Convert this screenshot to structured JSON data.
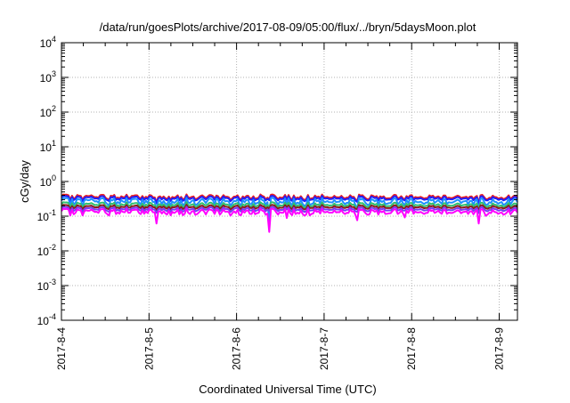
{
  "chart_data": {
    "type": "line",
    "title": "/data/run/goesPlots/archive/2017-08-09/05:00/flux/../bryn/5daysMoon.plot",
    "xlabel": "Coordinated Universal Time (UTC)",
    "ylabel": "cGy/day",
    "y_scale": "log",
    "ylim": [
      0.0001,
      10000
    ],
    "y_ticks": [
      {
        "base": "10",
        "exp": "-4",
        "value": 0.0001
      },
      {
        "base": "10",
        "exp": "-3",
        "value": 0.001
      },
      {
        "base": "10",
        "exp": "-2",
        "value": 0.01
      },
      {
        "base": "10",
        "exp": "-1",
        "value": 0.1
      },
      {
        "base": "10",
        "exp": "0",
        "value": 1
      },
      {
        "base": "10",
        "exp": "1",
        "value": 10
      },
      {
        "base": "10",
        "exp": "2",
        "value": 100
      },
      {
        "base": "10",
        "exp": "3",
        "value": 1000
      },
      {
        "base": "10",
        "exp": "4",
        "value": 10000
      }
    ],
    "xlim": [
      "2017-08-04T00:00",
      "2017-08-09T05:00"
    ],
    "x_ticks": [
      "2017-8-4",
      "2017-8-5",
      "2017-8-6",
      "2017-8-7",
      "2017-8-8",
      "2017-8-9"
    ],
    "grid": true,
    "legend": "none",
    "series": [
      {
        "color": "#ee1c1c",
        "base": 0.36,
        "amp": 0.05,
        "dip": 0.72
      },
      {
        "color": "#1f1fff",
        "base": 0.33,
        "amp": 0.045,
        "dip": 0.74
      },
      {
        "color": "#1e8fff",
        "base": 0.27,
        "amp": 0.06,
        "dip": 0.55
      },
      {
        "color": "#2fbf6f",
        "base": 0.215,
        "amp": 0.03,
        "dip": 0.8
      },
      {
        "color": "#8b1a1a",
        "base": 0.185,
        "amp": 0.02,
        "dip": 0.85
      },
      {
        "color": "#7a3df0",
        "base": 0.16,
        "amp": 0.02,
        "dip": 0.82
      },
      {
        "color": "#ff00ff",
        "base": 0.135,
        "amp": 0.025,
        "dip": 0.45
      }
    ]
  }
}
